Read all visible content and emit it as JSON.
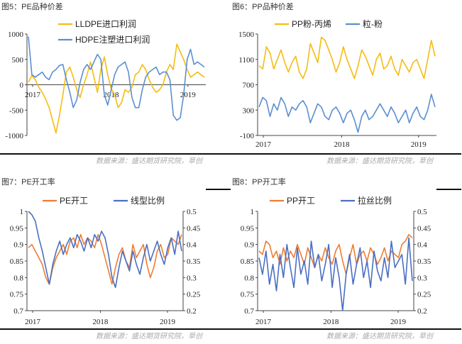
{
  "sources": {
    "top_left": "数据来源：盛达期货研究院，草创",
    "top_right": "数据来源：盛达期货研究院，草创",
    "bottom_left": "数据来源：盛达期货研究院，草创",
    "bottom_right": "数据来源：盛达期货研究院，草创"
  },
  "colors": {
    "orange": "#f5bc12",
    "blue": "#5b8fd0",
    "coral": "#ee7d33",
    "royal": "#4a6fc3"
  },
  "chart_data": [
    {
      "id": "pe-spread",
      "type": "line",
      "title": "图5：PE品种价差",
      "x_ticks": [
        "2017",
        "2018",
        "2019"
      ],
      "ylim": [
        -1000,
        1000
      ],
      "y_ticks": [
        1000,
        500,
        0,
        -500,
        -1000
      ],
      "legend_position": "top-center",
      "series": [
        {
          "name": "LLDPE进口利润",
          "color": "#f5bc12",
          "values": [
            50,
            180,
            100,
            -50,
            -150,
            -280,
            -450,
            -700,
            -950,
            -600,
            -200,
            250,
            350,
            150,
            -100,
            -250,
            0,
            200,
            450,
            150,
            -150,
            300,
            550,
            200,
            -80,
            -200,
            -450,
            -350,
            -100,
            -150,
            -50,
            200,
            250,
            400,
            300,
            100,
            -50,
            -150,
            -100,
            0,
            250,
            400,
            300,
            800,
            650,
            500,
            300,
            150,
            200,
            250,
            200,
            150
          ]
        },
        {
          "name": "HDPE注塑进口利润",
          "color": "#5b8fd0",
          "values": [
            950,
            200,
            150,
            200,
            250,
            150,
            100,
            250,
            300,
            380,
            400,
            100,
            -150,
            -450,
            -300,
            50,
            300,
            400,
            300,
            450,
            600,
            500,
            -200,
            -400,
            -100,
            200,
            350,
            400,
            450,
            250,
            -250,
            -450,
            -450,
            -100,
            150,
            250,
            300,
            350,
            200,
            250,
            250,
            100,
            -600,
            -700,
            -650,
            -200,
            500,
            700,
            400,
            450,
            400,
            350
          ]
        }
      ]
    },
    {
      "id": "pp-spread",
      "type": "line",
      "title": "图6：PP品种价差",
      "x_ticks": [
        "2017",
        "2018",
        "2019"
      ],
      "ylim": [
        -100,
        1500
      ],
      "y_ticks": [
        1500,
        1100,
        700,
        300,
        -100
      ],
      "legend_position": "top-center",
      "series": [
        {
          "name": "PP粉-丙烯",
          "color": "#f5bc12",
          "values": [
            1000,
            950,
            1300,
            1200,
            950,
            1100,
            1250,
            1050,
            900,
            1050,
            1150,
            900,
            800,
            950,
            1350,
            1200,
            1050,
            1450,
            1400,
            1250,
            1100,
            900,
            1050,
            1300,
            1100,
            950,
            800,
            1000,
            1250,
            1150,
            1000,
            850,
            1100,
            1200,
            950,
            1000,
            1150,
            950,
            850,
            1100,
            1000,
            900,
            1050,
            1100,
            950,
            800,
            1100,
            1400,
            1150
          ]
        },
        {
          "name": "粒-粉",
          "color": "#5b8fd0",
          "values": [
            350,
            500,
            450,
            200,
            400,
            300,
            500,
            400,
            200,
            350,
            300,
            400,
            450,
            350,
            100,
            250,
            400,
            350,
            200,
            150,
            300,
            350,
            250,
            100,
            250,
            300,
            150,
            -50,
            200,
            300,
            150,
            200,
            300,
            400,
            300,
            200,
            350,
            250,
            100,
            200,
            300,
            100,
            250,
            350,
            200,
            150,
            300,
            550,
            350
          ]
        }
      ]
    },
    {
      "id": "pe-operating",
      "type": "line",
      "title": "图7：PE开工率",
      "x_ticks": [
        "2017",
        "2018",
        "2019"
      ],
      "ylim": [
        0.7,
        1
      ],
      "y_ticks": [
        1,
        0.95,
        0.9,
        0.85,
        0.8,
        0.75,
        0.7
      ],
      "y2lim": [
        0.2,
        0.5
      ],
      "y2_ticks": [
        0.5,
        0.45,
        0.4,
        0.35,
        0.3,
        0.25,
        0.2
      ],
      "legend_position": "top-center",
      "series": [
        {
          "name": "PE开工",
          "color": "#ee7d33",
          "axis": "left",
          "values": [
            0.89,
            0.9,
            0.88,
            0.86,
            0.84,
            0.8,
            0.78,
            0.83,
            0.86,
            0.88,
            0.9,
            0.87,
            0.91,
            0.92,
            0.89,
            0.93,
            0.9,
            0.92,
            0.91,
            0.89,
            0.93,
            0.9,
            0.86,
            0.82,
            0.78,
            0.83,
            0.87,
            0.89,
            0.85,
            0.83,
            0.9,
            0.86,
            0.88,
            0.9,
            0.84,
            0.8,
            0.83,
            0.88,
            0.9,
            0.86,
            0.87,
            0.92,
            0.91,
            0.9,
            0.93
          ]
        },
        {
          "name": "线型比例",
          "color": "#4a6fc3",
          "axis": "right",
          "values": [
            0.5,
            0.49,
            0.47,
            0.42,
            0.38,
            0.33,
            0.28,
            0.34,
            0.38,
            0.41,
            0.37,
            0.4,
            0.42,
            0.39,
            0.43,
            0.41,
            0.38,
            0.42,
            0.39,
            0.43,
            0.41,
            0.44,
            0.42,
            0.37,
            0.3,
            0.27,
            0.33,
            0.38,
            0.35,
            0.32,
            0.38,
            0.34,
            0.31,
            0.36,
            0.4,
            0.35,
            0.38,
            0.41,
            0.37,
            0.34,
            0.39,
            0.42,
            0.37,
            0.44,
            0.38
          ]
        }
      ]
    },
    {
      "id": "pp-operating",
      "type": "line",
      "title": "图8：PP开工率",
      "x_ticks": [
        "2017",
        "2018",
        "2019"
      ],
      "ylim": [
        0.7,
        1
      ],
      "y_ticks": [
        1,
        0.95,
        0.9,
        0.85,
        0.8,
        0.75,
        0.7
      ],
      "y2lim": [
        0.2,
        0.5
      ],
      "y2_ticks": [
        0.5,
        0.45,
        0.4,
        0.35,
        0.3,
        0.25,
        0.2
      ],
      "legend_position": "top-center",
      "series": [
        {
          "name": "PP开工",
          "color": "#ee7d33",
          "axis": "left",
          "values": [
            0.88,
            0.87,
            0.91,
            0.9,
            0.86,
            0.88,
            0.84,
            0.89,
            0.85,
            0.88,
            0.86,
            0.9,
            0.87,
            0.84,
            0.89,
            0.86,
            0.83,
            0.87,
            0.85,
            0.89,
            0.86,
            0.84,
            0.88,
            0.9,
            0.85,
            0.81,
            0.86,
            0.9,
            0.84,
            0.87,
            0.88,
            0.85,
            0.89,
            0.87,
            0.84,
            0.86,
            0.89,
            0.85,
            0.88,
            0.87,
            0.86,
            0.9,
            0.91,
            0.93,
            0.92
          ]
        },
        {
          "name": "拉丝比例",
          "color": "#4a6fc3",
          "axis": "right",
          "values": [
            0.36,
            0.31,
            0.38,
            0.28,
            0.34,
            0.26,
            0.37,
            0.3,
            0.4,
            0.33,
            0.27,
            0.39,
            0.31,
            0.35,
            0.28,
            0.41,
            0.33,
            0.37,
            0.29,
            0.34,
            0.4,
            0.27,
            0.36,
            0.3,
            0.2,
            0.31,
            0.37,
            0.28,
            0.34,
            0.39,
            0.3,
            0.35,
            0.27,
            0.38,
            0.32,
            0.29,
            0.36,
            0.3,
            0.41,
            0.33,
            0.35,
            0.37,
            0.28,
            0.42,
            0.29
          ]
        }
      ]
    }
  ]
}
